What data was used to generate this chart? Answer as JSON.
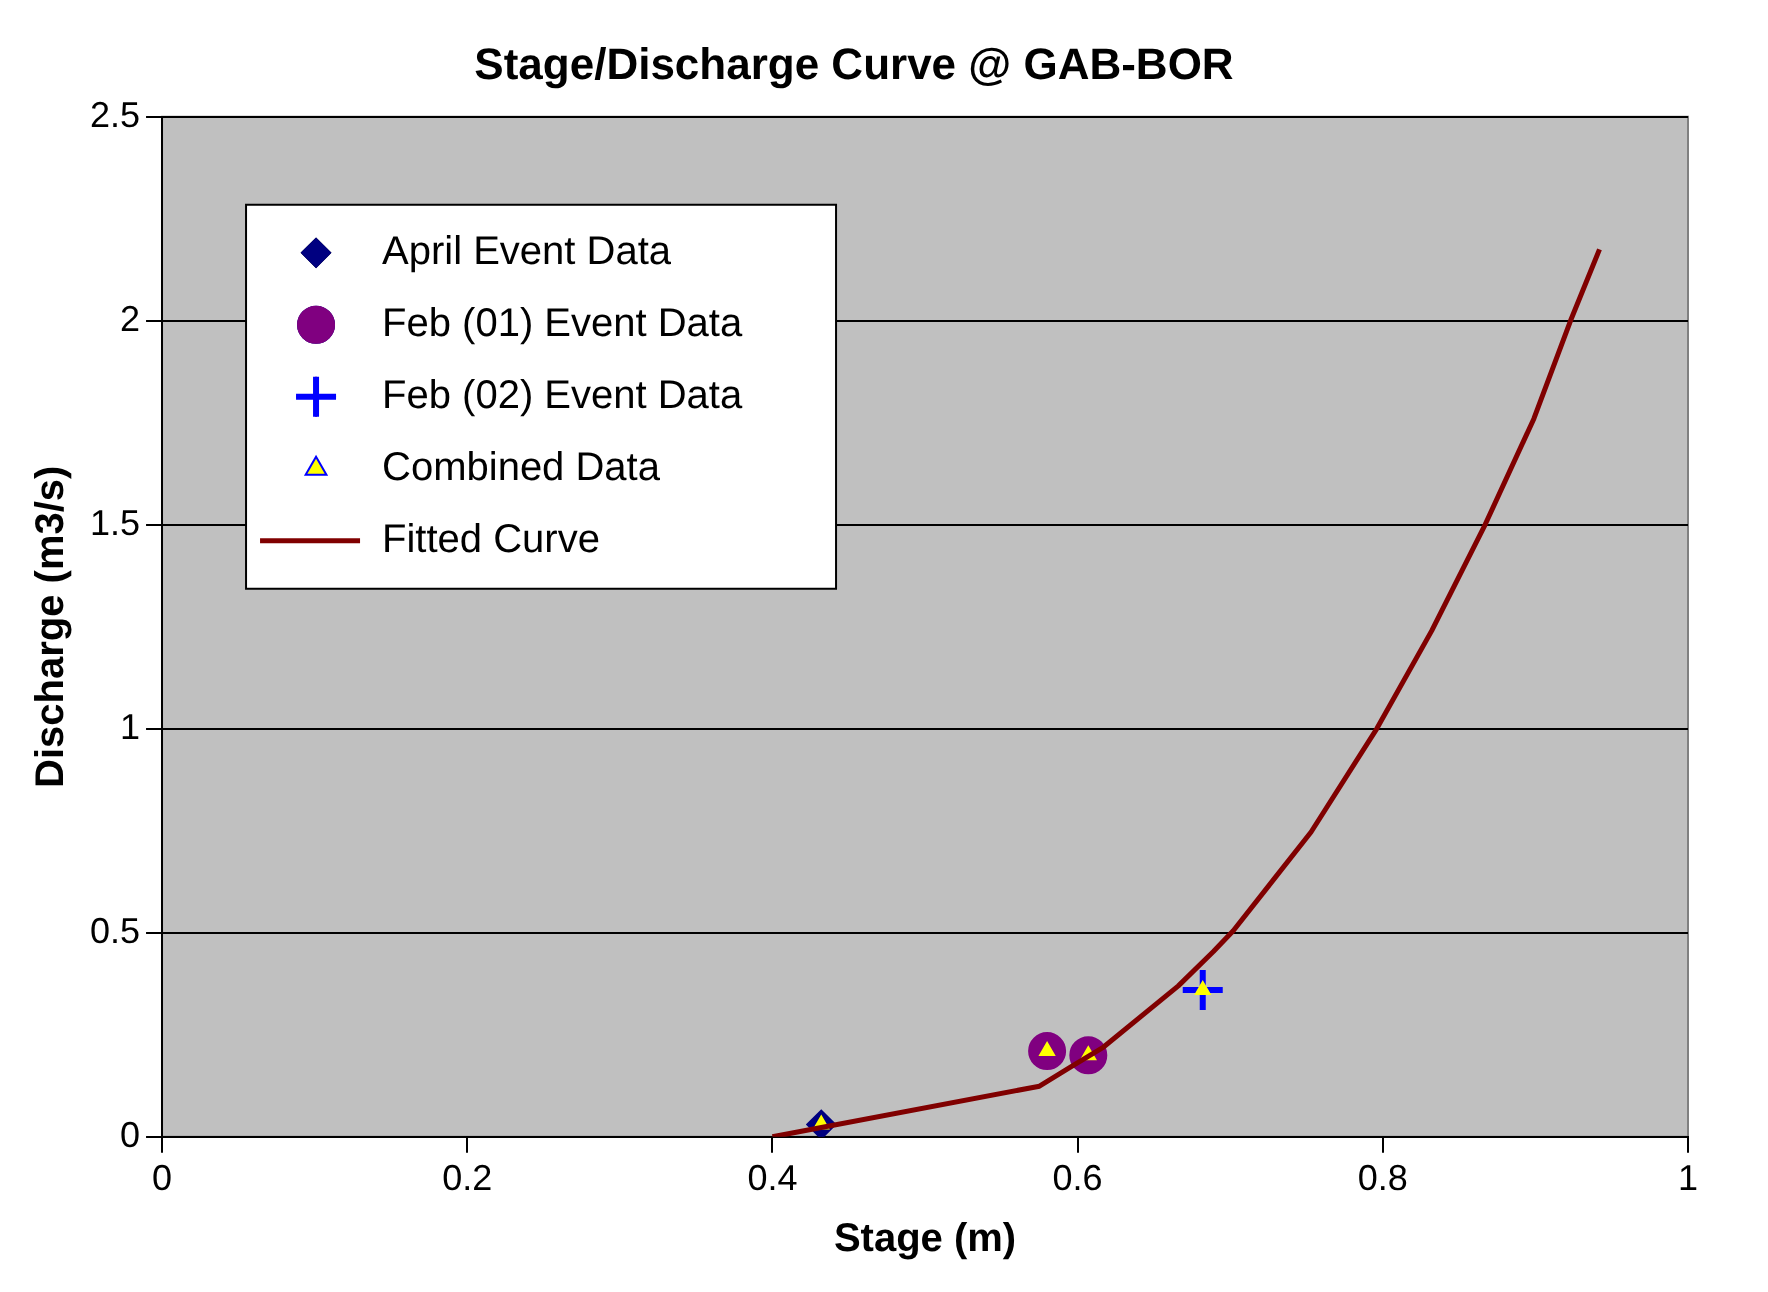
{
  "chart_data": {
    "type": "scatter",
    "title": "Stage/Discharge Curve @ GAB-BOR",
    "xlabel": "Stage (m)",
    "ylabel": "Discharge (m3/s)",
    "xlim": [
      0,
      1
    ],
    "xticks": [
      0,
      0.2,
      0.4,
      0.6,
      0.8,
      1
    ],
    "ylim": [
      0,
      2.5
    ],
    "yticks": [
      0,
      0.5,
      1,
      1.5,
      2,
      2.5
    ],
    "grid": "y",
    "legend": "top left",
    "series": [
      {
        "name": "April Event Data",
        "color": "#000080",
        "marker": "diamond",
        "x": [
          0.432
        ],
        "values": [
          0.03
        ]
      },
      {
        "name": "Feb (01) Event Data",
        "color": "#800080",
        "marker": "circle",
        "x": [
          0.58,
          0.607
        ],
        "values": [
          0.21,
          0.2
        ]
      },
      {
        "name": "Feb (02) Event Data",
        "color": "#0000ff",
        "marker": "cross",
        "x": [
          0.682
        ],
        "values": [
          0.36
        ]
      },
      {
        "name": "Combined Data",
        "color": "#ffff00",
        "marker": "triangle",
        "x": [
          0.432,
          0.58,
          0.607,
          0.682
        ],
        "values": [
          0.03,
          0.21,
          0.2,
          0.36
        ]
      },
      {
        "name": "Fitted Curve",
        "type": "line",
        "color": "#800000",
        "marker": "none",
        "x": [
          0.4,
          0.575,
          0.595,
          0.617,
          0.666,
          0.689,
          0.702,
          0.753,
          0.796,
          0.832,
          0.867,
          0.899,
          0.923,
          0.942
        ],
        "values": [
          0,
          0.124,
          0.17,
          0.22,
          0.37,
          0.454,
          0.505,
          0.747,
          1.0,
          1.24,
          1.5,
          1.76,
          2.0,
          2.175
        ]
      }
    ]
  }
}
